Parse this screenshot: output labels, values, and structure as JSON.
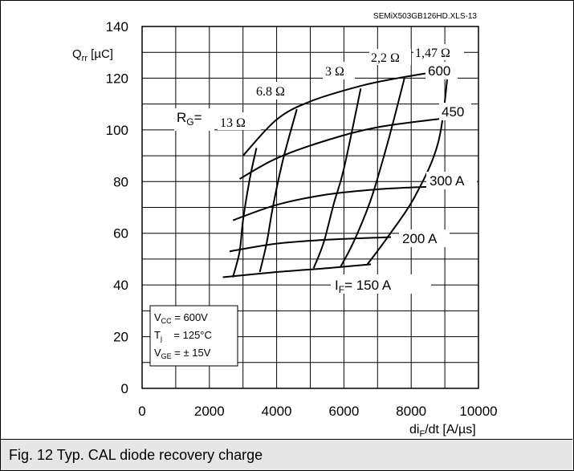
{
  "caption": "Fig. 12 Typ. CAL diode recovery charge",
  "chart_data": {
    "type": "line",
    "source_label": "SEMiX503GB126HD.XLS-13",
    "ylabel_main": "Q",
    "ylabel_sub": "rr",
    "ylabel_unit": " [µC]",
    "xlabel_pre": "di",
    "xlabel_sub": "F",
    "xlabel_post": "/dt [A/µs]",
    "xlim": [
      0,
      10000
    ],
    "ylim": [
      0,
      140
    ],
    "x_ticks": [
      0,
      2000,
      4000,
      6000,
      8000,
      10000
    ],
    "y_ticks": [
      0,
      20,
      40,
      60,
      80,
      100,
      120,
      140
    ],
    "grid": true,
    "current_series": [
      {
        "label": "I",
        "label_sub": "F",
        "label_post": "=  150 A",
        "points": [
          [
            2400,
            43
          ],
          [
            4000,
            45
          ],
          [
            5500,
            46.5
          ],
          [
            6800,
            48
          ]
        ]
      },
      {
        "label": "200 A",
        "points": [
          [
            2600,
            53
          ],
          [
            4000,
            56
          ],
          [
            5500,
            57.5
          ],
          [
            7400,
            58.5
          ]
        ]
      },
      {
        "label": "300 A",
        "points": [
          [
            2700,
            65
          ],
          [
            4000,
            71
          ],
          [
            5500,
            75
          ],
          [
            7000,
            77
          ],
          [
            8500,
            78
          ]
        ]
      },
      {
        "label": "450",
        "points": [
          [
            2900,
            81
          ],
          [
            4000,
            89
          ],
          [
            5500,
            96
          ],
          [
            7000,
            101
          ],
          [
            9000,
            104.5
          ]
        ]
      },
      {
        "label": "600",
        "points": [
          [
            3000,
            90
          ],
          [
            4000,
            104
          ],
          [
            5000,
            111
          ],
          [
            6500,
            117
          ],
          [
            7600,
            120
          ],
          [
            9200,
            123.5
          ]
        ]
      }
    ],
    "resistance_series": [
      {
        "label": "13 Ω",
        "points": [
          [
            2700,
            43
          ],
          [
            2900,
            53
          ],
          [
            3000,
            65
          ],
          [
            3200,
            81
          ],
          [
            3400,
            93
          ]
        ]
      },
      {
        "label": "6.8 Ω",
        "points": [
          [
            3500,
            45
          ],
          [
            3700,
            56
          ],
          [
            3900,
            71
          ],
          [
            4200,
            89
          ],
          [
            4600,
            108
          ]
        ]
      },
      {
        "label": "3 Ω",
        "points": [
          [
            5100,
            46.5
          ],
          [
            5400,
            56.5
          ],
          [
            5700,
            71.5
          ],
          [
            6000,
            85
          ],
          [
            6500,
            116
          ]
        ]
      },
      {
        "label": "2,2 Ω",
        "points": [
          [
            5900,
            47
          ],
          [
            6300,
            57
          ],
          [
            6800,
            73
          ],
          [
            7300,
            95
          ],
          [
            7800,
            120
          ]
        ]
      },
      {
        "label": "1,47 Ω",
        "points": [
          [
            6700,
            48
          ],
          [
            7300,
            58.5
          ],
          [
            8100,
            74
          ],
          [
            8800,
            95
          ],
          [
            9100,
            123
          ]
        ]
      }
    ],
    "rg_label": "R",
    "rg_label_sub": "G",
    "rg_label_post": "=",
    "conditions": [
      {
        "main": "V",
        "sub": "CC",
        "rest": " = 600V"
      },
      {
        "main": "T",
        "sub": "j",
        "rest": "    = 125°C"
      },
      {
        "main": "V",
        "sub": "GE",
        "rest": " = ± 15V"
      }
    ]
  }
}
